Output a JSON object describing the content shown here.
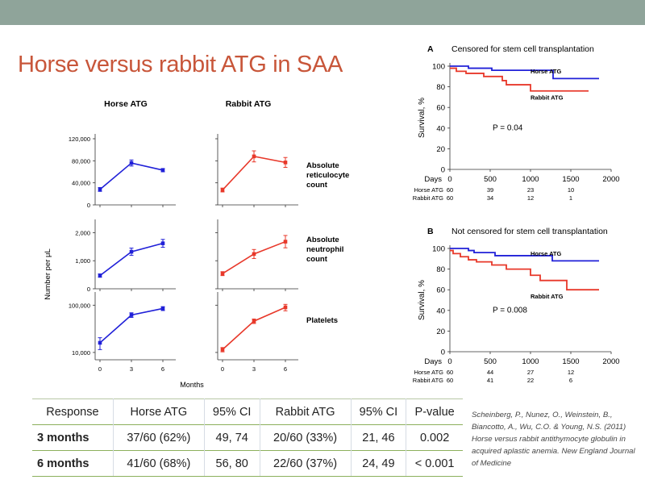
{
  "slide": {
    "title": "Horse versus rabbit ATG in SAA",
    "citation": "Scheinberg, P., Nunez, O., Weinstein, B., Biancotto, A., Wu, C.O. & Young, N.S. (2011) Horse versus rabbit antithymocyte globulin in acquired aplastic anemia. New England Journal of Medicine",
    "colors": {
      "topbar": "#8fa49a",
      "title": "#c8563a",
      "horse": "#2020d8",
      "rabbit": "#e8382a",
      "table_rule": "#8cb05c"
    }
  },
  "chart_data": [
    {
      "type": "line",
      "id": "counts",
      "column_titles": [
        "Horse ATG",
        "Rabbit ATG"
      ],
      "ylabel": "Number per μL",
      "xlabel": "Months",
      "x": [
        0,
        3,
        6
      ],
      "x_tick_labels": [
        "0",
        "3",
        "6"
      ],
      "panels": [
        {
          "name": "Absolute reticulocyte count",
          "label_lines": [
            "Absolute",
            "reticulocyte",
            "count"
          ],
          "scale": "linear",
          "ylim": [
            0,
            120000
          ],
          "ticks": [
            0,
            40000,
            80000,
            120000
          ],
          "tick_labels": [
            "0",
            "40,000",
            "80,000",
            "120,000"
          ],
          "horse": {
            "values": [
              28000,
              76000,
              63000
            ],
            "err": [
              3500,
              5500,
              3000
            ]
          },
          "rabbit": {
            "values": [
              27000,
              88000,
              77000
            ],
            "err": [
              3500,
              10000,
              9000
            ]
          }
        },
        {
          "name": "Absolute neutrophil count",
          "label_lines": [
            "Absolute",
            "neutrophil",
            "count"
          ],
          "scale": "linear",
          "ylim": [
            0,
            2300
          ],
          "ticks": [
            0,
            1000,
            2000
          ],
          "tick_labels": [
            "0",
            "1,000",
            "2,000"
          ],
          "horse": {
            "values": [
              470,
              1320,
              1620
            ],
            "err": [
              60,
              130,
              140
            ]
          },
          "rabbit": {
            "values": [
              540,
              1240,
              1680
            ],
            "err": [
              70,
              160,
              220
            ]
          }
        },
        {
          "name": "Platelets",
          "label_lines": [
            "Platelets"
          ],
          "scale": "log",
          "ylim": [
            7000,
            150000
          ],
          "ticks": [
            10000,
            100000
          ],
          "tick_labels": [
            "10,000",
            "100,000"
          ],
          "horse": {
            "values": [
              16000,
              62000,
              85000
            ],
            "err": [
              4500,
              7000,
              8000
            ]
          },
          "rabbit": {
            "values": [
              11500,
              46000,
              90000
            ],
            "err": [
              1200,
              5000,
              14000
            ]
          }
        }
      ]
    },
    {
      "type": "line",
      "id": "km_a",
      "panel_letter": "A",
      "title": "Censored for stem cell transplantation",
      "ylabel": "Survival, %",
      "xlabel": "Days",
      "xlim": [
        0,
        2000
      ],
      "ylim": [
        0,
        100
      ],
      "x_ticks": [
        0,
        500,
        1000,
        1500,
        2000
      ],
      "y_ticks": [
        0,
        20,
        40,
        60,
        80,
        100
      ],
      "pvalue": "P = 0.04",
      "series": [
        {
          "name": "Horse ATG",
          "steps": [
            [
              0,
              100
            ],
            [
              230,
              98
            ],
            [
              520,
              96
            ],
            [
              1280,
              88
            ],
            [
              1850,
              88
            ]
          ]
        },
        {
          "name": "Rabbit ATG",
          "steps": [
            [
              0,
              98
            ],
            [
              80,
              95
            ],
            [
              200,
              93
            ],
            [
              420,
              90
            ],
            [
              650,
              86
            ],
            [
              700,
              82
            ],
            [
              1000,
              76
            ],
            [
              1720,
              76
            ]
          ]
        }
      ],
      "at_risk": {
        "label": "Days",
        "rows": [
          {
            "name": "Horse ATG",
            "values": [
              "60",
              "39",
              "23",
              "10"
            ]
          },
          {
            "name": "Rabbit ATG",
            "values": [
              "60",
              "34",
              "12",
              "1"
            ]
          }
        ]
      }
    },
    {
      "type": "line",
      "id": "km_b",
      "panel_letter": "B",
      "title": "Not censored for stem cell transplantation",
      "ylabel": "Survival, %",
      "xlabel": "Days",
      "xlim": [
        0,
        2000
      ],
      "ylim": [
        0,
        100
      ],
      "x_ticks": [
        0,
        500,
        1000,
        1500,
        2000
      ],
      "y_ticks": [
        0,
        20,
        40,
        60,
        80,
        100
      ],
      "pvalue": "P = 0.008",
      "series": [
        {
          "name": "Horse ATG",
          "steps": [
            [
              0,
              100
            ],
            [
              230,
              98
            ],
            [
              300,
              96
            ],
            [
              560,
              93
            ],
            [
              1270,
              88
            ],
            [
              1850,
              88
            ]
          ]
        },
        {
          "name": "Rabbit ATG",
          "steps": [
            [
              0,
              98
            ],
            [
              40,
              95
            ],
            [
              130,
              92
            ],
            [
              230,
              89
            ],
            [
              330,
              87
            ],
            [
              520,
              84
            ],
            [
              700,
              80
            ],
            [
              1000,
              74
            ],
            [
              1120,
              69
            ],
            [
              1450,
              60
            ],
            [
              1850,
              60
            ]
          ]
        }
      ],
      "at_risk": {
        "label": "Days",
        "rows": [
          {
            "name": "Horse ATG",
            "values": [
              "60",
              "44",
              "27",
              "12"
            ]
          },
          {
            "name": "Rabbit ATG",
            "values": [
              "60",
              "41",
              "22",
              "6"
            ]
          }
        ]
      }
    }
  ],
  "table": {
    "headers": [
      "Response",
      "Horse ATG",
      "95% CI",
      "Rabbit ATG",
      "95% CI",
      "P-value"
    ],
    "rows": [
      [
        "3 months",
        "37/60 (62%)",
        "49, 74",
        "20/60 (33%)",
        "21, 46",
        "0.002"
      ],
      [
        "6 months",
        "41/60 (68%)",
        "56, 80",
        "22/60 (37%)",
        "24, 49",
        "< 0.001"
      ]
    ]
  }
}
